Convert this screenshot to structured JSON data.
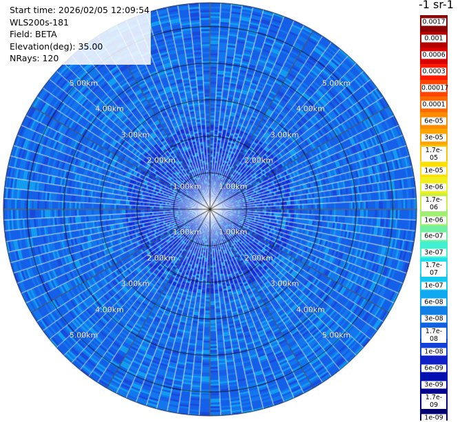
{
  "info": {
    "start_time": "Start time: 2026/02/05 12:09:54",
    "instrument": "WLS200s-181",
    "field": "Field: BETA",
    "elevation": "Elevation(deg): 35.00",
    "nrays": "NRays: 120"
  },
  "colorbar": {
    "title": "-1 sr-1",
    "labels": [
      "0.0017",
      "0.001",
      "0.0006",
      "0.0003",
      "0.00017",
      "0.0001",
      "6e-05",
      "3e-05",
      "1.7e-05",
      "1e-05",
      "3e-06",
      "1.7e-06",
      "1e-06",
      "6e-07",
      "3e-07",
      "1.7e-07",
      "1e-07",
      "6e-08",
      "3e-08",
      "1.7e-08",
      "1e-08",
      "6e-09",
      "3e-09",
      "1.7e-09",
      "1e-09"
    ],
    "colors": [
      "#8b0000",
      "#b20000",
      "#d90000",
      "#ff1a00",
      "#ff4500",
      "#ff6a00",
      "#ff8c00",
      "#ffa500",
      "#ffc000",
      "#ffe000",
      "#f0f020",
      "#c8f040",
      "#a0f070",
      "#70f0a0",
      "#40f0d0",
      "#20e0f0",
      "#10c8f0",
      "#10a8f0",
      "#1080e8",
      "#1060e0",
      "#1040d8",
      "#1020c8",
      "#0010b0",
      "#000090",
      "#000070"
    ]
  },
  "rings": {
    "labels": [
      "1.00km",
      "2.00km",
      "3.00km",
      "4.00km",
      "5.00km"
    ]
  },
  "field_colors": [
    "#1560e8",
    "#1278f0",
    "#0f90f2",
    "#1a50e0",
    "#1e40d8",
    "#18a8f0"
  ]
}
